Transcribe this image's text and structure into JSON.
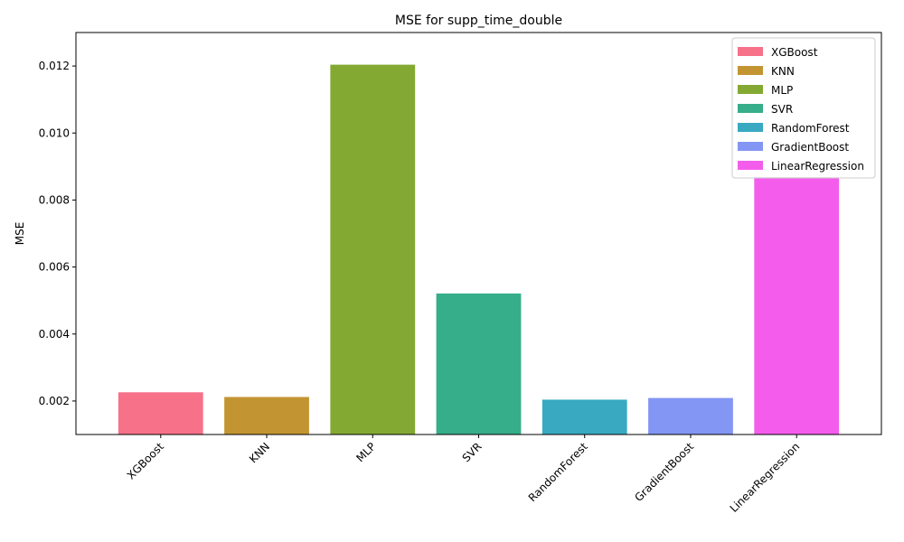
{
  "chart_data": {
    "type": "bar",
    "title": "MSE for supp_time_double",
    "xlabel": "",
    "ylabel": "MSE",
    "categories": [
      "XGBoost",
      "KNN",
      "MLP",
      "SVR",
      "RandomForest",
      "GradientBoost",
      "LinearRegression"
    ],
    "values": [
      0.00226,
      0.00212,
      0.01204,
      0.00521,
      0.00204,
      0.00209,
      0.00868
    ],
    "colors": [
      "#f77189",
      "#c39532",
      "#84a933",
      "#36ae8a",
      "#38a9c0",
      "#8396f4",
      "#f45deb"
    ],
    "ylim": [
      0.001,
      0.013
    ],
    "yticks": [
      0.002,
      0.004,
      0.006,
      0.008,
      0.01,
      0.012
    ],
    "ytick_labels": [
      "0.002",
      "0.004",
      "0.006",
      "0.008",
      "0.010",
      "0.012"
    ],
    "grid": false,
    "legend": {
      "placement": "top-right",
      "entries": [
        "XGBoost",
        "KNN",
        "MLP",
        "SVR",
        "RandomForest",
        "GradientBoost",
        "LinearRegression"
      ]
    }
  }
}
